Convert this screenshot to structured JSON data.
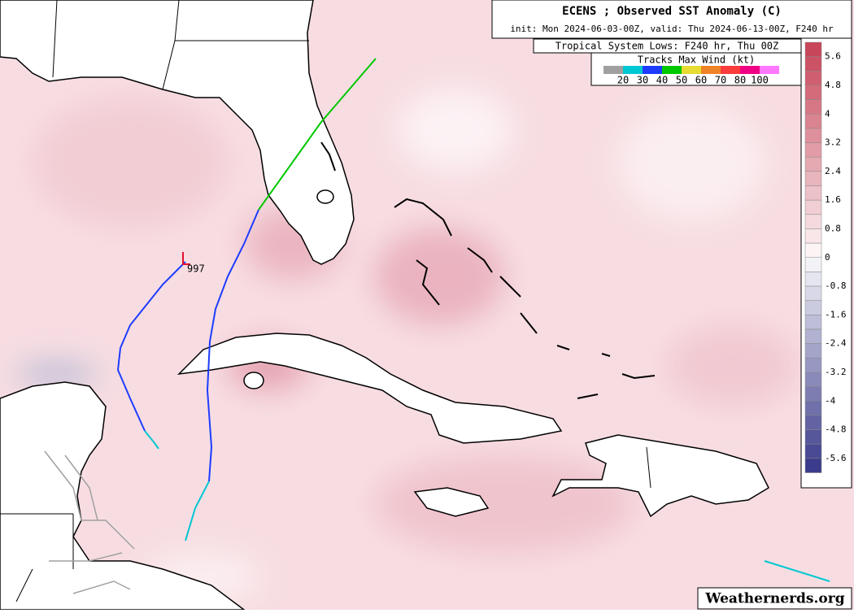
{
  "header": {
    "title": "ECENS ; Observed SST Anomaly (C)",
    "subtitle": "init: Mon 2024-06-03-00Z, valid: Thu 2024-06-13-00Z, F240 hr",
    "lows_title": "Tropical System Lows: F240 hr, Thu 00Z"
  },
  "wind_legend": {
    "title": "Tracks Max Wind (kt)",
    "labels": [
      "20",
      "30",
      "40",
      "50",
      "60",
      "70",
      "80",
      "100"
    ],
    "colors": [
      "#a0a0a0",
      "#00c8d2",
      "#1e3cff",
      "#00c800",
      "#e6dc32",
      "#f08228",
      "#fa3c3c",
      "#f00082",
      "#ff78ff"
    ]
  },
  "colorbar": {
    "labels": [
      "5.6",
      "4.8",
      "4",
      "3.2",
      "2.4",
      "1.6",
      "0.8",
      "0",
      "-0.8",
      "-1.6",
      "-2.4",
      "-3.2",
      "-4",
      "-4.8",
      "-5.6"
    ],
    "warm_color": "#c8465a",
    "cold_color": "#3c3c8c"
  },
  "lows": [
    {
      "label": "997"
    }
  ],
  "watermark": "Weathernerds.org"
}
